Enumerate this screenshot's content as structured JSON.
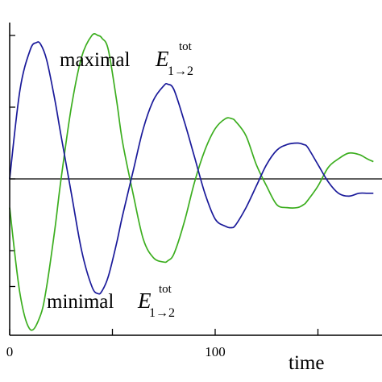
{
  "chart_data": {
    "type": "line",
    "xlabel": "time",
    "ylabel": "",
    "x_ticks": [
      "0",
      "100"
    ],
    "xlim": [
      0,
      177
    ],
    "ylim": [
      -1.05,
      1.0
    ],
    "grid": false,
    "zero_line": true,
    "colors": {
      "maximal": "#1a1a9a",
      "minimal": "#3cae1f"
    },
    "annotations": {
      "maximal": {
        "prefix": "maximal",
        "symbol": "E",
        "sup": "tot",
        "sub": "1→2"
      },
      "minimal": {
        "prefix": "minimal",
        "symbol": "E",
        "sup": "tot",
        "sub": "1→2"
      }
    },
    "series": [
      {
        "key": "maximal",
        "x": [
          0,
          5,
          10,
          13,
          15,
          18,
          22,
          25,
          30,
          35,
          40,
          43,
          45,
          48,
          52,
          55,
          60,
          65,
          70,
          75,
          77,
          80,
          85,
          90,
          95,
          100,
          105,
          108,
          110,
          115,
          120,
          125,
          130,
          135,
          140,
          143,
          145,
          150,
          155,
          160,
          165,
          170,
          174,
          177
        ],
        "y": [
          0.0,
          0.62,
          0.9,
          0.95,
          0.94,
          0.83,
          0.55,
          0.3,
          -0.1,
          -0.5,
          -0.75,
          -0.8,
          -0.78,
          -0.68,
          -0.45,
          -0.25,
          0.05,
          0.35,
          0.55,
          0.65,
          0.66,
          0.62,
          0.4,
          0.15,
          -0.1,
          -0.28,
          -0.33,
          -0.34,
          -0.32,
          -0.2,
          -0.05,
          0.1,
          0.2,
          0.24,
          0.25,
          0.24,
          0.22,
          0.1,
          -0.02,
          -0.1,
          -0.12,
          -0.1,
          -0.1,
          -0.1
        ]
      },
      {
        "key": "minimal",
        "x": [
          0,
          5,
          10,
          15,
          18,
          22,
          25,
          30,
          35,
          40,
          43,
          45,
          48,
          52,
          55,
          60,
          65,
          70,
          75,
          77,
          80,
          85,
          90,
          95,
          100,
          105,
          108,
          110,
          115,
          120,
          125,
          130,
          135,
          140,
          143,
          145,
          150,
          155,
          160,
          165,
          170,
          174,
          177
        ],
        "y": [
          -0.2,
          -0.8,
          -1.05,
          -0.95,
          -0.75,
          -0.35,
          0.0,
          0.5,
          0.85,
          1.0,
          1.0,
          0.98,
          0.9,
          0.55,
          0.25,
          -0.1,
          -0.42,
          -0.55,
          -0.58,
          -0.57,
          -0.52,
          -0.3,
          -0.02,
          0.2,
          0.35,
          0.42,
          0.42,
          0.4,
          0.3,
          0.1,
          -0.05,
          -0.18,
          -0.2,
          -0.2,
          -0.18,
          -0.15,
          -0.05,
          0.08,
          0.14,
          0.18,
          0.17,
          0.14,
          0.12
        ]
      }
    ]
  }
}
